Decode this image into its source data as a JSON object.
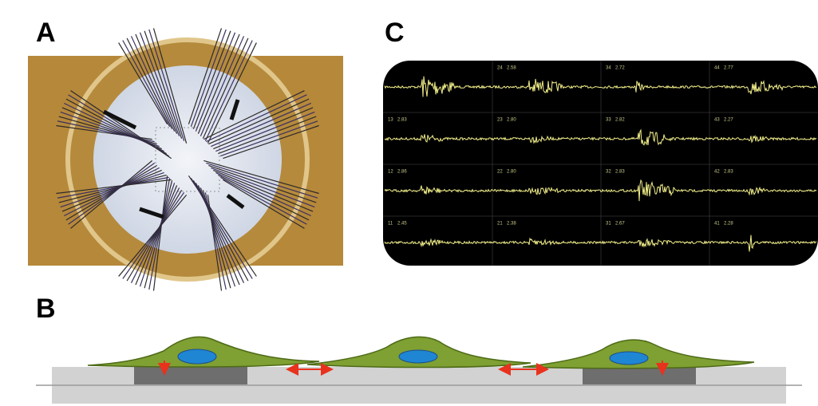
{
  "panels": {
    "a": {
      "label": "A"
    },
    "c": {
      "label": "C",
      "rows": [
        [
          {
            "id": "24",
            "value": "2.58"
          },
          {
            "id": "34",
            "value": "2.72"
          },
          {
            "id": "44",
            "value": "2.77"
          }
        ],
        [
          {
            "id": "13",
            "value": "2.83"
          },
          {
            "id": "23",
            "value": "2.80"
          },
          {
            "id": "33",
            "value": "2.82"
          },
          {
            "id": "43",
            "value": "2.27"
          }
        ],
        [
          {
            "id": "12",
            "value": "2.86"
          },
          {
            "id": "22",
            "value": "2.80"
          },
          {
            "id": "32",
            "value": "2.83"
          },
          {
            "id": "42",
            "value": "2.83"
          }
        ],
        [
          {
            "id": "11",
            "value": "2.45"
          },
          {
            "id": "21",
            "value": "2.38"
          },
          {
            "id": "31",
            "value": "2.67"
          },
          {
            "id": "41",
            "value": "2.28"
          }
        ]
      ]
    },
    "b": {
      "label": "B"
    }
  }
}
